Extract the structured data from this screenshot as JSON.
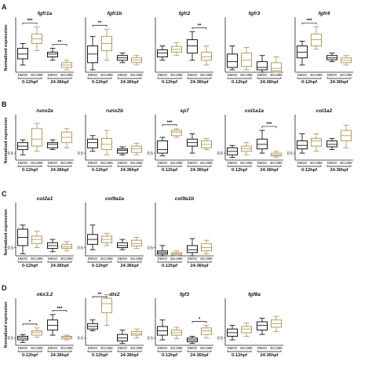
{
  "chart_data": {
    "type": "boxplot",
    "ylabel": "Normalized expression",
    "group_labels": [
      "DMSO",
      "BGJ398"
    ],
    "time_labels": [
      "0-12hpf",
      "24-36hpf"
    ],
    "group_colors": {
      "DMSO": "#1a1a1a",
      "BGJ398": "#b49a64"
    },
    "panels": [
      {
        "label": "A",
        "ytick": "",
        "yrange": [
          0.3,
          1.45
        ],
        "genes": [
          {
            "name": "fgfr1a",
            "boxes": [
              [
                0.45,
                0.58,
                0.68,
                0.8,
                0.9
              ],
              [
                0.75,
                0.9,
                1.0,
                1.1,
                1.25
              ],
              [
                0.55,
                0.62,
                0.68,
                0.72,
                0.8
              ],
              [
                0.35,
                0.4,
                0.45,
                0.5,
                0.55
              ]
            ],
            "sig": [
              {
                "pair": [
                  0,
                  1
                ],
                "label": "***"
              },
              {
                "pair": [
                  2,
                  3
                ],
                "label": "**"
              }
            ]
          },
          {
            "name": "fgfr1b",
            "boxes": [
              [
                0.35,
                0.5,
                0.68,
                0.85,
                1.05
              ],
              [
                0.55,
                0.75,
                0.9,
                1.05,
                1.2
              ],
              [
                0.5,
                0.55,
                0.6,
                0.65,
                0.7
              ],
              [
                0.45,
                0.5,
                0.55,
                0.6,
                0.65
              ]
            ],
            "sig": [
              {
                "pair": [
                  0,
                  1
                ],
                "label": "**"
              }
            ]
          },
          {
            "name": "fgfr2",
            "boxes": [
              [
                0.55,
                0.62,
                0.7,
                0.77,
                0.85
              ],
              [
                0.65,
                0.72,
                0.78,
                0.84,
                0.92
              ],
              [
                0.55,
                0.7,
                0.85,
                0.98,
                1.15
              ],
              [
                0.45,
                0.55,
                0.62,
                0.72,
                0.85
              ]
            ],
            "sig": [
              {
                "pair": [
                  2,
                  3
                ],
                "label": "**"
              }
            ]
          },
          {
            "name": "fgfr3",
            "boxes": [
              [
                0.35,
                0.4,
                0.52,
                0.68,
                0.85
              ],
              [
                0.35,
                0.42,
                0.55,
                0.7,
                0.82
              ],
              [
                0.3,
                0.35,
                0.4,
                0.52,
                0.65
              ],
              [
                0.3,
                0.33,
                0.38,
                0.5,
                0.62
              ]
            ],
            "sig": []
          },
          {
            "name": "fgfr4",
            "boxes": [
              [
                0.45,
                0.6,
                0.72,
                0.85,
                0.95
              ],
              [
                0.78,
                0.85,
                0.98,
                1.1,
                1.25
              ],
              [
                0.52,
                0.56,
                0.6,
                0.65,
                0.7
              ],
              [
                0.45,
                0.5,
                0.55,
                0.6,
                0.65
              ]
            ],
            "sig": [
              {
                "pair": [
                  0,
                  1
                ],
                "label": "***"
              }
            ]
          }
        ]
      },
      {
        "label": "B",
        "ytick": "0.5",
        "yrange": [
          0.3,
          1.6
        ],
        "genes": [
          {
            "name": "runx2a",
            "boxes": [
              [
                0.45,
                0.6,
                0.7,
                0.8,
                0.88
              ],
              [
                0.55,
                0.7,
                0.9,
                1.2,
                1.35
              ],
              [
                0.6,
                0.65,
                0.75,
                0.8,
                0.88
              ],
              [
                0.65,
                0.8,
                0.95,
                1.1,
                1.2
              ]
            ],
            "sig": []
          },
          {
            "name": "runx2b",
            "boxes": [
              [
                0.55,
                0.65,
                0.8,
                0.9,
                1.0
              ],
              [
                0.45,
                0.6,
                0.75,
                0.92,
                1.15
              ],
              [
                0.45,
                0.5,
                0.58,
                0.62,
                0.68
              ],
              [
                0.45,
                0.52,
                0.62,
                0.7,
                0.78
              ]
            ],
            "sig": []
          },
          {
            "name": "sp7",
            "boxes": [
              [
                0.42,
                0.5,
                0.6,
                0.85,
                0.95
              ],
              [
                0.95,
                1.0,
                1.1,
                1.15,
                1.2
              ],
              [
                0.5,
                0.7,
                0.8,
                0.9,
                1.05
              ],
              [
                0.6,
                0.65,
                0.75,
                0.85,
                0.92
              ]
            ],
            "sig": [
              {
                "pair": [
                  0,
                  1
                ],
                "label": "***"
              }
            ]
          },
          {
            "name": "col1a1a",
            "boxes": [
              [
                0.38,
                0.45,
                0.55,
                0.65,
                0.72
              ],
              [
                0.45,
                0.55,
                0.62,
                0.7,
                0.8
              ],
              [
                0.5,
                0.62,
                0.75,
                0.9,
                1.15
              ],
              [
                0.38,
                0.42,
                0.45,
                0.5,
                0.55
              ]
            ],
            "sig": [
              {
                "pair": [
                  2,
                  3
                ],
                "label": "***"
              }
            ]
          },
          {
            "name": "col1a2",
            "boxes": [
              [
                0.5,
                0.62,
                0.72,
                0.85,
                1.05
              ],
              [
                0.55,
                0.7,
                0.85,
                0.92,
                1.05
              ],
              [
                0.6,
                0.68,
                0.75,
                0.85,
                0.92
              ],
              [
                0.65,
                0.85,
                1.0,
                1.15,
                1.3
              ]
            ],
            "sig": []
          }
        ]
      },
      {
        "label": "C",
        "ytick": "0.5",
        "yrange": [
          0.3,
          1.6
        ],
        "genes": [
          {
            "name": "col2a1",
            "boxes": [
              [
                0.35,
                0.55,
                0.75,
                0.95,
                1.05
              ],
              [
                0.5,
                0.6,
                0.7,
                0.78,
                0.9
              ],
              [
                0.4,
                0.48,
                0.55,
                0.62,
                0.7
              ],
              [
                0.42,
                0.48,
                0.52,
                0.58,
                0.65
              ]
            ],
            "sig": []
          },
          {
            "name": "col9a1a",
            "boxes": [
              [
                0.45,
                0.58,
                0.7,
                0.82,
                1.05
              ],
              [
                0.55,
                0.62,
                0.7,
                0.78,
                0.85
              ],
              [
                0.45,
                0.5,
                0.55,
                0.62,
                0.7
              ],
              [
                0.48,
                0.54,
                0.6,
                0.68,
                0.75
              ]
            ],
            "sig": []
          },
          {
            "name": "col9a1b",
            "boxes": [
              [
                0.3,
                0.34,
                0.38,
                0.42,
                0.55
              ],
              [
                0.3,
                0.32,
                0.35,
                0.38,
                0.42
              ],
              [
                0.3,
                0.38,
                0.45,
                0.55,
                0.72
              ],
              [
                0.35,
                0.42,
                0.5,
                0.6,
                0.68
              ]
            ],
            "sig": []
          }
        ]
      },
      {
        "label": "D",
        "ytick": "0.5",
        "yrange": [
          0.3,
          1.6
        ],
        "genes": [
          {
            "name": "nkx3.2",
            "boxes": [
              [
                0.38,
                0.45,
                0.5,
                0.55,
                0.6
              ],
              [
                0.52,
                0.58,
                0.65,
                0.7,
                0.78
              ],
              [
                0.58,
                0.72,
                0.85,
                1.0,
                1.15
              ],
              [
                0.45,
                0.48,
                0.52,
                0.55,
                0.58
              ]
            ],
            "sig": [
              {
                "pair": [
                  0,
                  1
                ],
                "label": "*"
              },
              {
                "pair": [
                  2,
                  3
                ],
                "label": "***"
              }
            ]
          },
          {
            "name": "dlx2",
            "boxes": [
              [
                0.7,
                0.75,
                0.82,
                0.9,
                1.0
              ],
              [
                0.85,
                1.2,
                1.45,
                1.6,
                1.7
              ],
              [
                0.35,
                0.42,
                0.5,
                0.6,
                0.72
              ],
              [
                0.5,
                0.58,
                0.62,
                0.68,
                0.75
              ]
            ],
            "sig": [
              {
                "pair": [
                  0,
                  1
                ],
                "label": "**"
              }
            ]
          },
          {
            "name": "fgf3",
            "boxes": [
              [
                0.45,
                0.58,
                0.7,
                0.82,
                1.0
              ],
              [
                0.48,
                0.58,
                0.65,
                0.72,
                0.8
              ],
              [
                0.35,
                0.4,
                0.45,
                0.5,
                0.55
              ],
              [
                0.5,
                0.6,
                0.7,
                0.78,
                0.85
              ]
            ],
            "sig": [
              {
                "pair": [
                  2,
                  3
                ],
                "label": "*"
              }
            ]
          },
          {
            "name": "fgf8a",
            "boxes": [
              [
                0.45,
                0.55,
                0.65,
                0.75,
                0.85
              ],
              [
                0.55,
                0.65,
                0.75,
                0.82,
                0.92
              ],
              [
                0.6,
                0.72,
                0.85,
                0.95,
                1.05
              ],
              [
                0.68,
                0.8,
                0.9,
                1.0,
                1.1
              ]
            ],
            "sig": []
          }
        ]
      }
    ]
  }
}
